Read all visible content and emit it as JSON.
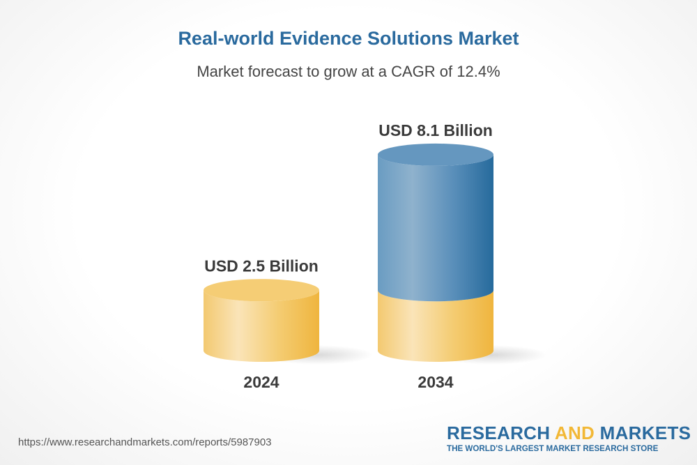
{
  "title": "Real-world Evidence Solutions Market",
  "subtitle": "Market forecast to grow at a CAGR of 12.4%",
  "chart_data": {
    "type": "bar",
    "style": "3d-cylinder",
    "categories": [
      "2024",
      "2034"
    ],
    "values": [
      2.5,
      8.1
    ],
    "data_labels": [
      "USD 2.5 Billion",
      "USD 8.1 Billion"
    ],
    "unit": "USD Billion",
    "colors": {
      "base": "#f2c05a",
      "growth": "#2a6a9e"
    }
  },
  "footer": {
    "url": "https://www.researchandmarkets.com/reports/5987903",
    "logo_word1": "RESEARCH",
    "logo_word2": "AND",
    "logo_word3": "MARKETS",
    "logo_tagline": "THE WORLD'S LARGEST MARKET RESEARCH STORE"
  }
}
